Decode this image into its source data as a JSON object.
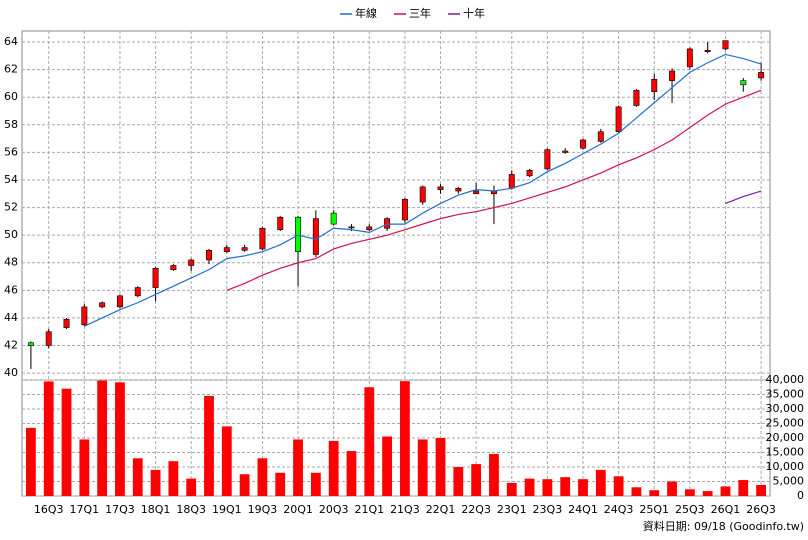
{
  "chart_data": [
    {
      "type": "candlestick",
      "categories": [
        null,
        "16Q3",
        null,
        "17Q1",
        null,
        "17Q3",
        null,
        "18Q1",
        null,
        "18Q3",
        null,
        "19Q1",
        null,
        "19Q3",
        null,
        "20Q1",
        null,
        "20Q3",
        null,
        "21Q1",
        null,
        "21Q3",
        null,
        "22Q1",
        null,
        "22Q3",
        null,
        "23Q1",
        null,
        "23Q3",
        null,
        "24Q1",
        null,
        "24Q3",
        null,
        "25Q1",
        null,
        "25Q3",
        null,
        "26Q1",
        null,
        "26Q3"
      ],
      "open": [
        42.2,
        42.0,
        43.3,
        43.5,
        44.8,
        44.8,
        45.6,
        46.2,
        47.5,
        47.8,
        48.2,
        48.8,
        48.9,
        49.0,
        50.4,
        51.3,
        48.6,
        51.6,
        50.6,
        50.4,
        50.5,
        51.1,
        52.4,
        53.3,
        53.2,
        53.0,
        53.0,
        53.4,
        54.3,
        54.8,
        56.0,
        56.3,
        56.8,
        57.5,
        59.4,
        60.4,
        61.2,
        62.2,
        63.3,
        63.5,
        61.2,
        61.4
      ],
      "high": [
        42.3,
        43.2,
        44.0,
        45.0,
        45.2,
        45.7,
        46.3,
        47.7,
        47.9,
        48.3,
        49.0,
        49.3,
        49.3,
        50.6,
        51.4,
        51.4,
        51.8,
        51.8,
        50.8,
        50.8,
        51.3,
        52.7,
        53.6,
        53.7,
        53.5,
        53.8,
        53.6,
        54.7,
        54.8,
        56.3,
        56.3,
        57.0,
        57.7,
        59.4,
        60.6,
        61.7,
        62.1,
        63.6,
        64.0,
        64.1,
        61.4,
        62.5
      ],
      "low": [
        40.3,
        41.8,
        43.2,
        43.4,
        44.7,
        44.7,
        45.5,
        45.2,
        47.4,
        47.4,
        47.9,
        48.7,
        48.8,
        48.9,
        50.3,
        46.3,
        48.4,
        50.7,
        50.3,
        50.3,
        50.3,
        50.9,
        52.2,
        53.0,
        53.0,
        53.0,
        50.8,
        53.3,
        54.2,
        54.7,
        55.9,
        56.2,
        56.7,
        57.4,
        59.3,
        59.8,
        59.6,
        62.0,
        63.2,
        63.4,
        60.4,
        61.2
      ],
      "close": [
        42.0,
        43.0,
        43.9,
        44.8,
        45.1,
        45.6,
        46.2,
        47.6,
        47.8,
        48.2,
        48.9,
        49.1,
        49.1,
        50.5,
        51.3,
        48.8,
        51.2,
        50.8,
        50.6,
        50.6,
        51.2,
        52.6,
        53.5,
        53.5,
        53.4,
        53.2,
        53.2,
        54.4,
        54.7,
        56.2,
        56.1,
        56.9,
        57.5,
        59.3,
        60.5,
        61.3,
        61.9,
        63.5,
        63.4,
        64.1,
        60.9,
        61.8
      ],
      "up_color": "#ff0000",
      "down_color": "#00ff00",
      "series": [
        {
          "name": "年線",
          "color": "#1f6fd0",
          "values": [
            null,
            null,
            null,
            43.4,
            44.0,
            44.6,
            45.1,
            45.7,
            46.3,
            46.9,
            47.5,
            48.3,
            48.5,
            48.8,
            49.3,
            50.0,
            49.7,
            50.5,
            50.4,
            50.2,
            50.8,
            50.8,
            51.6,
            52.3,
            52.9,
            53.3,
            53.2,
            53.4,
            53.8,
            54.6,
            55.2,
            55.9,
            56.6,
            57.4,
            58.5,
            59.6,
            60.7,
            61.8,
            62.5,
            63.1,
            62.8,
            62.4
          ]
        },
        {
          "name": "三年",
          "color": "#d0104a",
          "values": [
            null,
            null,
            null,
            null,
            null,
            null,
            null,
            null,
            null,
            null,
            null,
            46.0,
            46.5,
            47.1,
            47.6,
            48.0,
            48.3,
            49.0,
            49.4,
            49.7,
            50.0,
            50.4,
            50.8,
            51.2,
            51.5,
            51.7,
            52.0,
            52.3,
            52.7,
            53.1,
            53.5,
            54.0,
            54.5,
            55.1,
            55.6,
            56.2,
            56.9,
            57.8,
            58.7,
            59.5,
            60.0,
            60.5
          ]
        },
        {
          "name": "十年",
          "color": "#7a1fa0",
          "values": [
            null,
            null,
            null,
            null,
            null,
            null,
            null,
            null,
            null,
            null,
            null,
            null,
            null,
            null,
            null,
            null,
            null,
            null,
            null,
            null,
            null,
            null,
            null,
            null,
            null,
            null,
            null,
            null,
            null,
            null,
            null,
            null,
            null,
            null,
            null,
            null,
            null,
            null,
            null,
            52.3,
            52.8,
            53.2
          ]
        }
      ],
      "ylim": [
        39.5,
        64.8
      ],
      "yticks": [
        40,
        42,
        44,
        46,
        48,
        50,
        52,
        54,
        56,
        58,
        60,
        62,
        64
      ],
      "grid": true
    },
    {
      "type": "bar",
      "values": [
        23500,
        39500,
        37000,
        19500,
        39800,
        39200,
        13000,
        9000,
        12000,
        6000,
        34500,
        24000,
        7500,
        13000,
        8000,
        19500,
        8000,
        19000,
        15500,
        37500,
        20500,
        39600,
        19500,
        20000,
        10000,
        11000,
        14500,
        4500,
        6000,
        5800,
        6500,
        5800,
        9000,
        6800,
        3000,
        2000,
        5000,
        2300,
        1700,
        3300,
        5500,
        3800
      ],
      "color": "#ff0000",
      "ylim": [
        0,
        40000
      ],
      "yticks": [
        0,
        {
          "value": 5000,
          "label": "5,000"
        },
        {
          "value": 10000,
          "label": "10,000"
        },
        {
          "value": 15000,
          "label": "15,000"
        },
        {
          "value": 20000,
          "label": "20,000"
        },
        {
          "value": 25000,
          "label": "25,000"
        },
        {
          "value": 30000,
          "label": "30,000"
        },
        {
          "value": 35000,
          "label": "35,000"
        },
        {
          "value": 40000,
          "label": "40,000"
        }
      ],
      "grid": true
    }
  ],
  "footer": "資料日期: 09/18 (Goodinfo.tw)"
}
